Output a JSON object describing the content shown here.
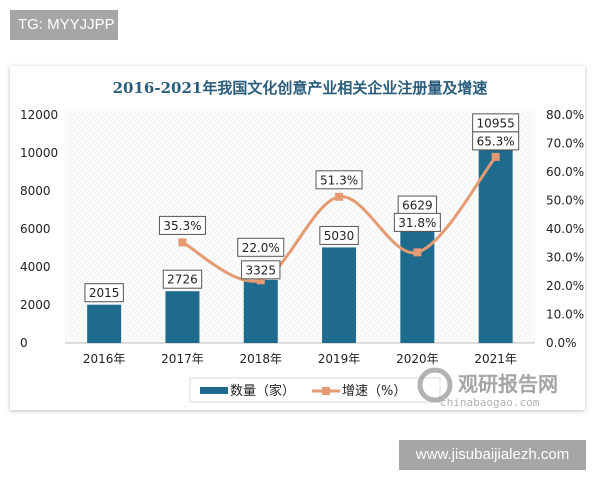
{
  "watermarks": {
    "top_left": "TG: MYYJJPP",
    "bottom_right": "www.jisubaijialezh.com"
  },
  "logo": {
    "name": "观研报告网",
    "url_text": "chinabaogao.com"
  },
  "chart_data": {
    "type": "bar+line",
    "title": "2016-2021年我国文化创意产业相关企业注册量及增速",
    "categories": [
      "2016年",
      "2017年",
      "2018年",
      "2019年",
      "2020年",
      "2021年"
    ],
    "series": [
      {
        "name": "数量（家）",
        "type": "bar",
        "axis": "left",
        "color": "#1f6b8e",
        "values": [
          2015,
          2726,
          3325,
          5030,
          6629,
          10955
        ],
        "labels": [
          "2015",
          "2726",
          "3325",
          "5030",
          "6629",
          "10955"
        ]
      },
      {
        "name": "增速（%）",
        "type": "line",
        "axis": "right",
        "color": "#e59a72",
        "smooth": true,
        "values": [
          null,
          35.3,
          22.0,
          51.3,
          31.8,
          65.3
        ],
        "labels": [
          "",
          "35.3%",
          "22.0%",
          "51.3%",
          "31.8%",
          "65.3%"
        ]
      }
    ],
    "y_left": {
      "range": [
        0,
        12000
      ],
      "ticks": [
        "0",
        "2000",
        "4000",
        "6000",
        "8000",
        "10000",
        "12000"
      ]
    },
    "y_right": {
      "range": [
        0,
        80
      ],
      "ticks": [
        "0.0%",
        "10.0%",
        "20.0%",
        "30.0%",
        "40.0%",
        "50.0%",
        "60.0%",
        "70.0%",
        "80.0%"
      ]
    },
    "grid": false,
    "legend": "bottom"
  }
}
